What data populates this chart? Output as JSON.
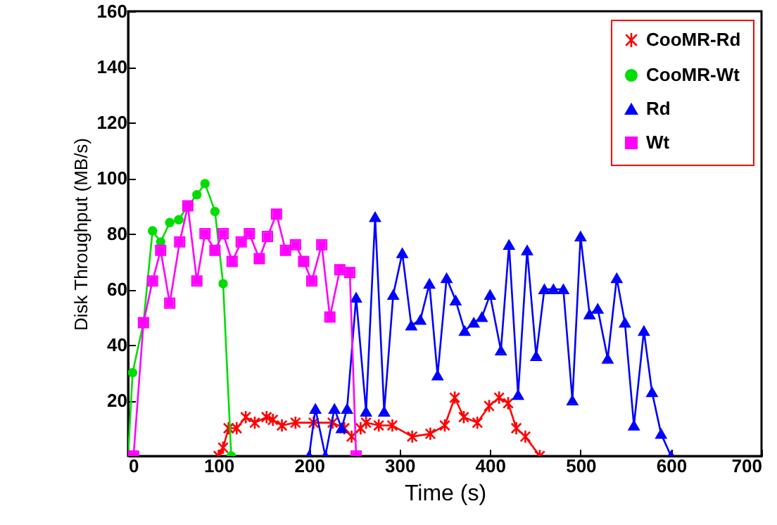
{
  "chart_data": {
    "type": "line",
    "xlabel": "Time (s)",
    "ylabel": "Disk Throughput (MB/s)",
    "xlim": [
      0,
      700
    ],
    "xticks": [
      0,
      100,
      200,
      300,
      400,
      500,
      600,
      700
    ],
    "ylim": [
      0,
      160
    ],
    "yticks": [
      20,
      40,
      60,
      80,
      100,
      120,
      140,
      160
    ],
    "grid": false,
    "legend": "top right",
    "series": [
      {
        "name": "CooMR-Rd",
        "color": "#ff0000",
        "marker": "cross",
        "x": [
          100,
          105,
          111,
          120,
          130,
          140,
          153,
          160,
          170,
          185,
          205,
          226,
          239,
          247,
          257,
          263,
          277,
          292,
          314,
          334,
          350,
          361,
          371,
          386,
          399,
          410,
          420,
          429,
          439,
          455
        ],
        "values": [
          0,
          3,
          10,
          10,
          14,
          12,
          14,
          13,
          11,
          12,
          12,
          12,
          10,
          7,
          10,
          12,
          11,
          11,
          7,
          8,
          11,
          21,
          14,
          12,
          18,
          21,
          19,
          10,
          7,
          0
        ]
      },
      {
        "name": "CooMR-Wt",
        "color": "#00dd00",
        "marker": "circle",
        "x": [
          0,
          5,
          17,
          27,
          36,
          46,
          56,
          66,
          76,
          85,
          96,
          105,
          114
        ],
        "values": [
          0,
          30,
          48,
          81,
          77,
          84,
          85,
          90,
          94,
          98,
          88,
          62,
          0
        ]
      },
      {
        "name": "Rd",
        "color": "#0000ff",
        "marker": "triangle",
        "x": [
          200,
          207,
          218,
          228,
          236,
          242,
          252,
          263,
          273,
          283,
          293,
          303,
          313,
          323,
          333,
          342,
          352,
          362,
          372,
          382,
          391,
          400,
          412,
          421,
          431,
          441,
          451,
          460,
          470,
          481,
          491,
          500,
          510,
          519,
          530,
          540,
          549,
          559,
          570,
          579,
          589,
          600
        ],
        "values": [
          0,
          17,
          0,
          17,
          10,
          17,
          57,
          16,
          86,
          16,
          58,
          73,
          47,
          49,
          62,
          29,
          64,
          56,
          45,
          48,
          50,
          58,
          38,
          76,
          22,
          74,
          36,
          60,
          60,
          60,
          20,
          79,
          51,
          53,
          35,
          64,
          48,
          11,
          45,
          23,
          8,
          0
        ]
      },
      {
        "name": "Wt",
        "color": "#ff00ff",
        "marker": "square",
        "x": [
          6,
          17,
          27,
          36,
          46,
          57,
          66,
          76,
          85,
          96,
          105,
          115,
          125,
          134,
          145,
          154,
          164,
          174,
          185,
          194,
          203,
          214,
          223,
          234,
          245,
          252
        ],
        "values": [
          0,
          48,
          63,
          74,
          55,
          77,
          90,
          63,
          80,
          74,
          80,
          70,
          77,
          80,
          71,
          79,
          87,
          74,
          76,
          70,
          63,
          76,
          50,
          67,
          66,
          0
        ]
      }
    ]
  }
}
